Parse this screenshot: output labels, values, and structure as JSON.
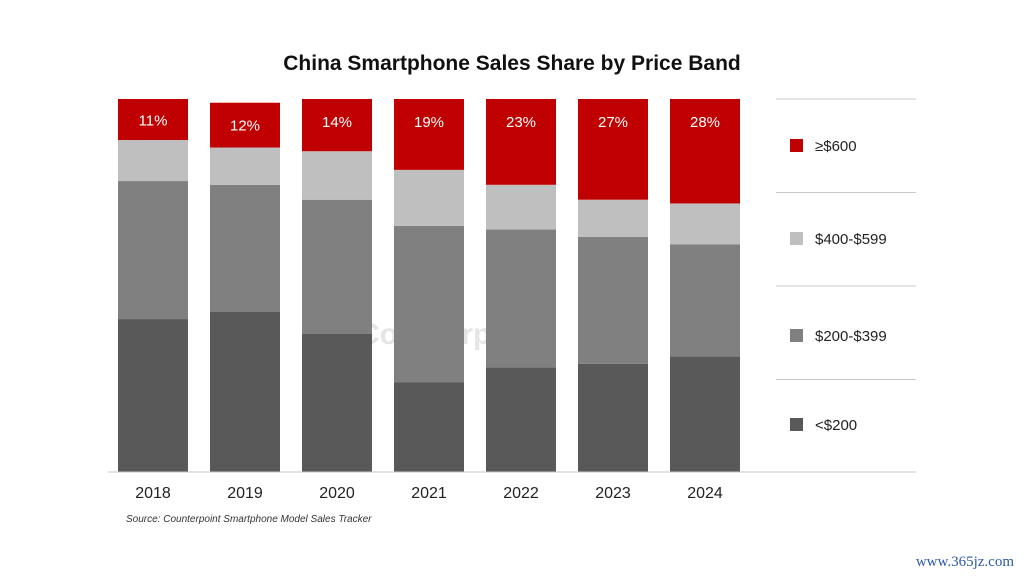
{
  "title": "China Smartphone Sales Share by Price Band",
  "source": "Source: Counterpoint Smartphone Model Sales Tracker",
  "watermark": "Counterpoint",
  "site_mark": "www.365jz.com",
  "chart_data": {
    "type": "bar",
    "stacked": true,
    "categories": [
      "2018",
      "2019",
      "2020",
      "2021",
      "2022",
      "2023",
      "2024"
    ],
    "ylim": [
      0,
      100
    ],
    "grid": false,
    "legend_position": "right",
    "series": [
      {
        "name": "<$200",
        "color": "#595959",
        "values": [
          41,
          43,
          37,
          24,
          28,
          29,
          31
        ]
      },
      {
        "name": "$200-$399",
        "color": "#808080",
        "values": [
          37,
          34,
          36,
          42,
          37,
          34,
          30
        ]
      },
      {
        "name": "$400-$599",
        "color": "#bfbfbf",
        "values": [
          11,
          10,
          13,
          15,
          12,
          10,
          11
        ]
      },
      {
        "name": "≥$600",
        "color": "#c00000",
        "values": [
          11,
          12,
          14,
          19,
          23,
          27,
          28
        ]
      }
    ],
    "data_labels": {
      "series": "≥$600",
      "texts": [
        "11%",
        "12%",
        "14%",
        "19%",
        "23%",
        "27%",
        "28%"
      ]
    }
  }
}
